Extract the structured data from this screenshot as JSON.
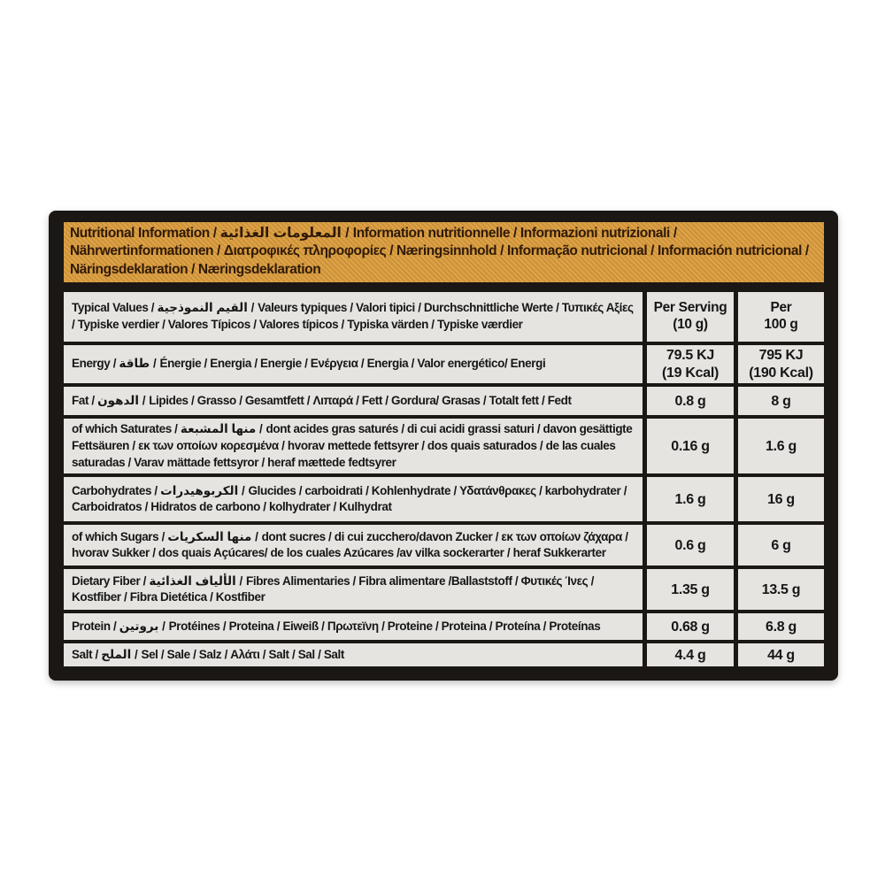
{
  "header": {
    "title": "Nutritional Information / المعلومات الغذائية / Information nutritionnelle / Informazioni nutrizionali / Nährwertinformationen / Διατροφικές πληροφορίες / Næringsinnhold / Informação nutricional / Información nutricional / Näringsdeklaration / Næringsdeklaration"
  },
  "table": {
    "columns": {
      "label": "Typical Values / القيم النموذجية / Valeurs typiques / Valori tipici / Durchschnittliche Werte / Τυπικές Αξίες / Typiske verdier / Valores Típicos / Valores típicos / Typiska värden / Typiske værdier",
      "per_serving": "Per Serving\n(10 g)",
      "per_100g": "Per\n100 g"
    },
    "rows": [
      {
        "id": "energy",
        "label": "Energy / طاقة / Énergie / Energia / Energie / Ενέργεια / Energia / Valor energético/ Energi",
        "per_serving": "79.5 KJ\n(19 Kcal)",
        "per_100g": "795 KJ\n(190 Kcal)"
      },
      {
        "id": "fat",
        "label": "Fat / الدهون / Lipides / Grasso / Gesamtfett / Λιπαρά / Fett / Gordura/ Grasas / Totalt fett / Fedt",
        "per_serving": "0.8 g",
        "per_100g": "8 g"
      },
      {
        "id": "saturates",
        "label": "of which Saturates / منها المشبعة / dont acides gras saturés / di cui acidi grassi saturi / davon gesättigte Fettsäuren / εκ των οποίων κορεσμένα / hvorav mettede fettsyrer / dos quais saturados / de las cuales saturadas / Varav mättade fettsyror / heraf mættede fedtsyrer",
        "per_serving": "0.16 g",
        "per_100g": "1.6 g"
      },
      {
        "id": "carbohydrates",
        "label": "Carbohydrates / الكربوهيدرات / Glucides / carboidrati / Kohlenhydrate / Υδατάνθρακες / karbohydrater / Carboidratos / Hidratos de carbono / kolhydrater / Kulhydrat",
        "per_serving": "1.6 g",
        "per_100g": "16 g"
      },
      {
        "id": "sugars",
        "label": "of which Sugars / منها السكريات / dont sucres / di cui zucchero/davon Zucker / εκ των οποίων ζάχαρα / hvorav Sukker / dos quais Açúcares/ de los cuales Azúcares /av vilka sockerarter / heraf Sukkerarter",
        "per_serving": "0.6 g",
        "per_100g": "6 g"
      },
      {
        "id": "dietary-fiber",
        "label": "Dietary Fiber / الألياف الغذائية / Fibres Alimentaries / Fibra alimentare /Ballaststoff / Φυτικές Ίνες / Kostfiber / Fibra Dietética / Kostfiber",
        "per_serving": "1.35 g",
        "per_100g": "13.5 g"
      },
      {
        "id": "protein",
        "label": "Protein / بروتين / Protéines / Proteina / Eiweiß / Πρωτεϊνη / Proteine / Proteina / Proteína / Proteínas",
        "per_serving": "0.68 g",
        "per_100g": "6.8 g"
      },
      {
        "id": "salt",
        "label": "Salt / الملح / Sel / Sale / Salz / Αλάτι / Salt / Sal / Salt",
        "per_serving": "4.4 g",
        "per_100g": "44 g"
      }
    ]
  },
  "colors": {
    "header_orange": "#d59740",
    "header_text_brown": "#2f1a08",
    "panel_black": "#1a1714",
    "cell_gray": "#e5e4e1",
    "cell_text": "#161616"
  }
}
